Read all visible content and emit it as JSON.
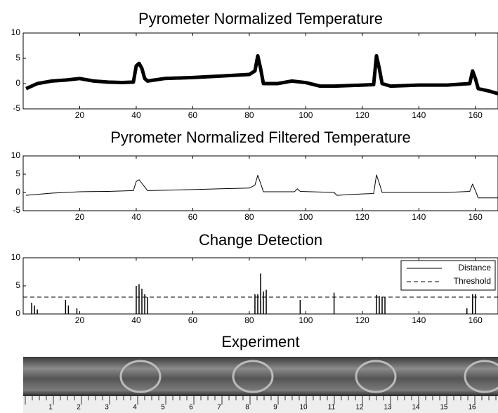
{
  "chart_data": [
    {
      "type": "line",
      "title": "Pyrometer Normalized Temperature",
      "xlim": [
        0,
        168
      ],
      "xticks": [
        20,
        40,
        60,
        80,
        100,
        120,
        140,
        160
      ],
      "ylim": [
        -5,
        10
      ],
      "yticks": [
        -5,
        0,
        5,
        10
      ],
      "line_width": 5,
      "series": [
        {
          "color": "#000000",
          "x": [
            1,
            5,
            10,
            15,
            20,
            25,
            30,
            35,
            39,
            40,
            41,
            42,
            43,
            44,
            50,
            60,
            70,
            80,
            82,
            83,
            84,
            85,
            90,
            95,
            100,
            105,
            110,
            120,
            124,
            125,
            126,
            127,
            130,
            140,
            150,
            158,
            159,
            160,
            161,
            165,
            168
          ],
          "values": [
            -1,
            0,
            0.5,
            0.7,
            1,
            0.5,
            0.3,
            0.2,
            0.3,
            3.5,
            4,
            3,
            1,
            0.5,
            1,
            1.2,
            1.5,
            1.8,
            2.5,
            5.5,
            3,
            0,
            0,
            0.5,
            0.2,
            -0.5,
            -0.5,
            -0.3,
            -0.2,
            5.5,
            3,
            0,
            -0.5,
            -0.3,
            -0.3,
            0,
            2.5,
            1,
            -1,
            -1.5,
            -2
          ]
        }
      ]
    },
    {
      "type": "line",
      "title": "Pyrometer Normalized Filtered Temperature",
      "xlim": [
        0,
        168
      ],
      "xticks": [
        20,
        40,
        60,
        80,
        100,
        120,
        140,
        160
      ],
      "ylim": [
        -5,
        10
      ],
      "yticks": [
        -5,
        0,
        5,
        10
      ],
      "line_width": 1,
      "series": [
        {
          "color": "#000000",
          "x": [
            1,
            10,
            20,
            30,
            39,
            40,
            41,
            42,
            43,
            44,
            50,
            60,
            70,
            80,
            82,
            83,
            84,
            85,
            90,
            96,
            97,
            98,
            110,
            111,
            115,
            120,
            124,
            125,
            126,
            127,
            130,
            140,
            150,
            158,
            159,
            160,
            161,
            168
          ],
          "values": [
            -0.8,
            -0.2,
            0.2,
            0.3,
            0.5,
            3,
            3.5,
            2.5,
            1.5,
            0.5,
            0.6,
            0.8,
            1,
            1.2,
            2,
            4.7,
            2.5,
            0.2,
            0.2,
            0.2,
            1,
            0.3,
            0,
            -0.8,
            -0.6,
            -0.4,
            -0.3,
            4.8,
            2.5,
            0,
            0,
            0,
            0,
            0.3,
            2.3,
            0.5,
            -1.5,
            -1.5
          ]
        }
      ]
    },
    {
      "type": "stem",
      "title": "Change Detection",
      "xlim": [
        0,
        168
      ],
      "xticks": [
        20,
        40,
        60,
        80,
        100,
        120,
        140,
        160
      ],
      "ylim": [
        0,
        10
      ],
      "yticks": [
        0,
        5,
        10
      ],
      "line_width": 1.5,
      "series": [
        {
          "name": "Distance",
          "color": "#000000",
          "x": [
            3,
            4,
            5,
            15,
            16,
            19,
            40,
            41,
            42,
            43,
            44,
            82,
            83,
            84,
            85,
            86,
            98,
            110,
            125,
            126,
            127,
            128,
            157,
            159,
            160
          ],
          "values": [
            2,
            1.5,
            0.8,
            2.5,
            1.5,
            1,
            5,
            5.3,
            4.5,
            3.5,
            3,
            3.5,
            3.5,
            7.2,
            4,
            4.3,
            2.5,
            3.8,
            3.4,
            3.2,
            3,
            3,
            1,
            3.5,
            3.5
          ]
        }
      ],
      "threshold": {
        "name": "Threshold",
        "value": 3,
        "color": "#000000"
      },
      "legend": "upper right"
    }
  ],
  "image": {
    "title": "Experiment",
    "ruler_labels": [
      "1",
      "2",
      "3",
      "4",
      "5",
      "6",
      "7",
      "8",
      "9",
      "10",
      "11",
      "12",
      "13",
      "14",
      "15",
      "16"
    ]
  }
}
